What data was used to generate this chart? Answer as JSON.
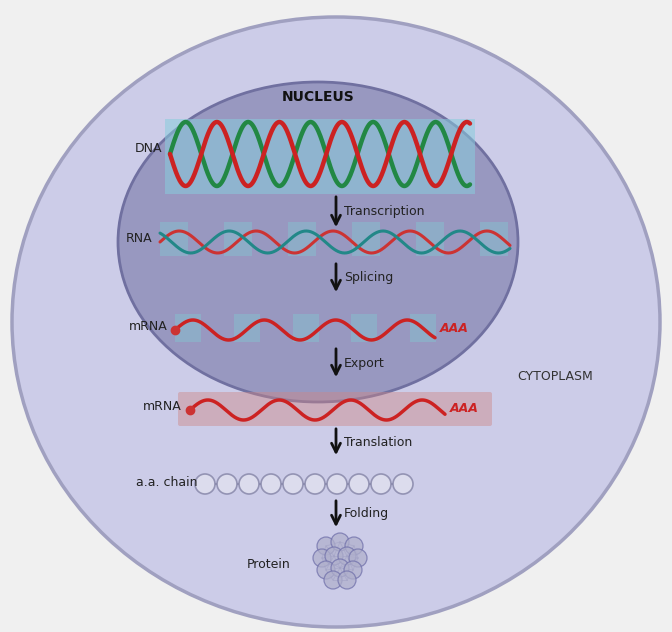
{
  "bg_color": "#f0f0f0",
  "cell_outer_color": "#cccce8",
  "cell_outer_edge": "#a0a0c0",
  "nucleus_color": "#9898c0",
  "nucleus_edge": "#7070a0",
  "nucleus_label": "NUCLEUS",
  "cytoplasm_label": "CYTOPLASM",
  "dna_color1": "#cc2222",
  "dna_color2": "#228844",
  "dna_bg": "#88ccdd",
  "rna_color1": "#cc3333",
  "rna_color2": "#228888",
  "rna_bg": "#88bbcc",
  "mrna_color": "#cc2222",
  "mrna_bg_nucleus": "#88bbcc",
  "mrna_bg_cyto": "#cc8888",
  "aa_chain_fill": "#e0e0ee",
  "aa_chain_edge": "#8888aa",
  "protein_fill": "#b0b0cc",
  "protein_edge": "#7070aa",
  "arrow_color": "#111111",
  "label_color": "#222222",
  "step_labels": [
    "Transcription",
    "Splicing",
    "Export",
    "Translation",
    "Folding"
  ],
  "aaa_color": "#cc2222",
  "nucleus_label_fontsize": 10,
  "label_fontsize": 9,
  "side_fontsize": 9
}
